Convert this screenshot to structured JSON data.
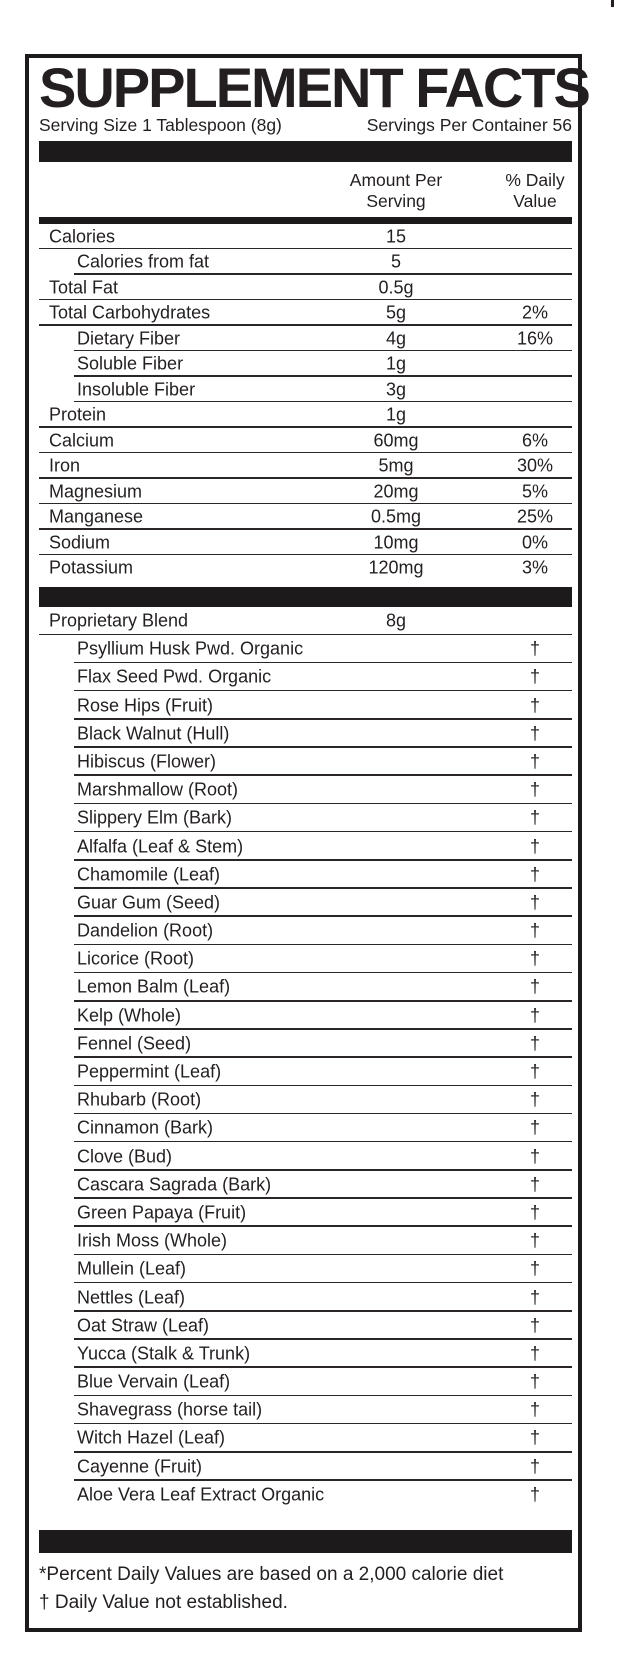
{
  "label": {
    "title": "SUPPLEMENT FACTS",
    "serving_size": "Serving Size 1 Tablespoon (8g)",
    "servings_per_container": "Servings Per Container 56",
    "columns": {
      "amount": "Amount Per\nServing",
      "daily_value": "% Daily\nValue"
    },
    "nutrients": [
      {
        "label": "Calories",
        "amount": "15",
        "dv": "",
        "indent": 0
      },
      {
        "label": "Calories from fat",
        "amount": "5",
        "dv": "",
        "indent": 1
      },
      {
        "label": "Total Fat",
        "amount": "0.5g",
        "dv": "",
        "indent": 0
      },
      {
        "label": "Total Carbohydrates",
        "amount": "5g",
        "dv": "2%",
        "indent": 0
      },
      {
        "label": "Dietary Fiber",
        "amount": "4g",
        "dv": "16%",
        "indent": 1
      },
      {
        "label": "Soluble Fiber",
        "amount": "1g",
        "dv": "",
        "indent": 1
      },
      {
        "label": "Insoluble Fiber",
        "amount": "3g",
        "dv": "",
        "indent": 1
      },
      {
        "label": "Protein",
        "amount": "1g",
        "dv": "",
        "indent": 0
      },
      {
        "label": "Calcium",
        "amount": "60mg",
        "dv": "6%",
        "indent": 0
      },
      {
        "label": "Iron",
        "amount": "5mg",
        "dv": "30%",
        "indent": 0
      },
      {
        "label": "Magnesium",
        "amount": "20mg",
        "dv": "5%",
        "indent": 0
      },
      {
        "label": "Manganese",
        "amount": "0.5mg",
        "dv": "25%",
        "indent": 0
      },
      {
        "label": "Sodium",
        "amount": "10mg",
        "dv": "0%",
        "indent": 0
      },
      {
        "label": "Potassium",
        "amount": "120mg",
        "dv": "3%",
        "indent": 0
      }
    ],
    "blend": [
      {
        "label": "Proprietary Blend",
        "amount": "8g",
        "dv": "",
        "indent": 0
      },
      {
        "label": "Psyllium Husk Pwd. Organic",
        "amount": "",
        "dv": "†",
        "indent": 1
      },
      {
        "label": "Flax Seed Pwd. Organic",
        "amount": "",
        "dv": "†",
        "indent": 1
      },
      {
        "label": "Rose Hips (Fruit)",
        "amount": "",
        "dv": "†",
        "indent": 1
      },
      {
        "label": "Black Walnut (Hull)",
        "amount": "",
        "dv": "†",
        "indent": 1
      },
      {
        "label": "Hibiscus (Flower)",
        "amount": "",
        "dv": "†",
        "indent": 1
      },
      {
        "label": "Marshmallow (Root)",
        "amount": "",
        "dv": "†",
        "indent": 1
      },
      {
        "label": "Slippery Elm (Bark)",
        "amount": "",
        "dv": "†",
        "indent": 1
      },
      {
        "label": "Alfalfa (Leaf & Stem)",
        "amount": "",
        "dv": "†",
        "indent": 1
      },
      {
        "label": "Chamomile (Leaf)",
        "amount": "",
        "dv": "†",
        "indent": 1
      },
      {
        "label": "Guar Gum (Seed)",
        "amount": "",
        "dv": "†",
        "indent": 1
      },
      {
        "label": "Dandelion (Root)",
        "amount": "",
        "dv": "†",
        "indent": 1
      },
      {
        "label": "Licorice (Root)",
        "amount": "",
        "dv": "†",
        "indent": 1
      },
      {
        "label": "Lemon Balm (Leaf)",
        "amount": "",
        "dv": "†",
        "indent": 1
      },
      {
        "label": "Kelp (Whole)",
        "amount": "",
        "dv": "†",
        "indent": 1
      },
      {
        "label": "Fennel (Seed)",
        "amount": "",
        "dv": "†",
        "indent": 1
      },
      {
        "label": "Peppermint (Leaf)",
        "amount": "",
        "dv": "†",
        "indent": 1
      },
      {
        "label": "Rhubarb (Root)",
        "amount": "",
        "dv": "†",
        "indent": 1
      },
      {
        "label": "Cinnamon (Bark)",
        "amount": "",
        "dv": "†",
        "indent": 1
      },
      {
        "label": "Clove (Bud)",
        "amount": "",
        "dv": "†",
        "indent": 1
      },
      {
        "label": "Cascara Sagrada (Bark)",
        "amount": "",
        "dv": "†",
        "indent": 1
      },
      {
        "label": "Green Papaya (Fruit)",
        "amount": "",
        "dv": "†",
        "indent": 1
      },
      {
        "label": "Irish Moss (Whole)",
        "amount": "",
        "dv": "†",
        "indent": 1
      },
      {
        "label": "Mullein (Leaf)",
        "amount": "",
        "dv": "†",
        "indent": 1
      },
      {
        "label": "Nettles (Leaf)",
        "amount": "",
        "dv": "†",
        "indent": 1
      },
      {
        "label": "Oat Straw (Leaf)",
        "amount": "",
        "dv": "†",
        "indent": 1
      },
      {
        "label": "Yucca (Stalk & Trunk)",
        "amount": "",
        "dv": "†",
        "indent": 1
      },
      {
        "label": "Blue Vervain (Leaf)",
        "amount": "",
        "dv": "†",
        "indent": 1
      },
      {
        "label": "Shavegrass (horse tail)",
        "amount": "",
        "dv": "†",
        "indent": 1
      },
      {
        "label": "Witch Hazel (Leaf)",
        "amount": "",
        "dv": "†",
        "indent": 1
      },
      {
        "label": "Cayenne (Fruit)",
        "amount": "",
        "dv": "†",
        "indent": 1
      },
      {
        "label": "Aloe Vera Leaf Extract Organic",
        "amount": "",
        "dv": "†",
        "indent": 1
      }
    ],
    "footnotes": [
      "*Percent Daily Values are based on a 2,000 calorie diet",
      "† Daily Value not established."
    ],
    "ink_color": "#231f20"
  }
}
